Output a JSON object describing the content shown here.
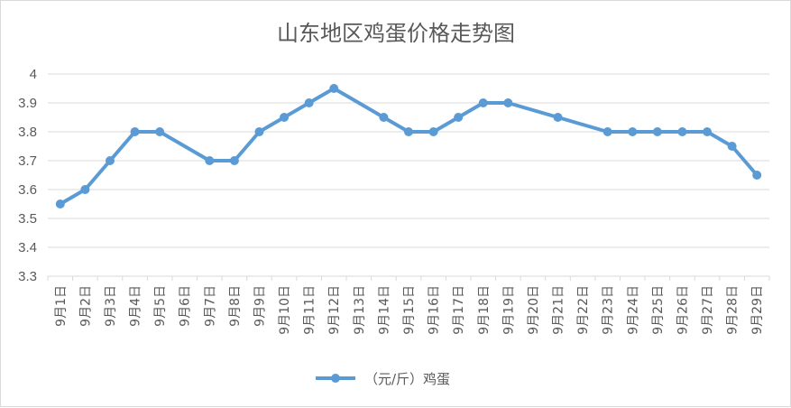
{
  "chart_data": {
    "type": "line",
    "title": "山东地区鸡蛋价格走势图",
    "xlabel": "",
    "ylabel": "",
    "ylim": [
      3.3,
      4
    ],
    "yticks": [
      "3.3",
      "3.4",
      "3.5",
      "3.6",
      "3.7",
      "3.8",
      "3.9",
      "4"
    ],
    "grid": true,
    "legend_position": "bottom",
    "categories": [
      "9月1日",
      "9月2日",
      "9月3日",
      "9月4日",
      "9月5日",
      "9月6日",
      "9月7日",
      "9月8日",
      "9月9日",
      "9月10日",
      "9月11日",
      "9月12日",
      "9月13日",
      "9月14日",
      "9月15日",
      "9月16日",
      "9月17日",
      "9月18日",
      "9月19日",
      "9月20日",
      "9月21日",
      "9月22日",
      "9月23日",
      "9月24日",
      "9月25日",
      "9月26日",
      "9月27日",
      "9月28日",
      "9月29日"
    ],
    "series": [
      {
        "name": "（元/斤）鸡蛋",
        "color": "#5b9bd5",
        "values": [
          3.55,
          3.6,
          3.7,
          3.8,
          3.8,
          null,
          3.7,
          3.7,
          3.8,
          3.85,
          3.9,
          3.95,
          null,
          3.85,
          3.8,
          3.8,
          3.85,
          3.9,
          3.9,
          null,
          3.85,
          null,
          3.8,
          3.8,
          3.8,
          3.8,
          3.8,
          3.75,
          3.65
        ]
      }
    ]
  }
}
